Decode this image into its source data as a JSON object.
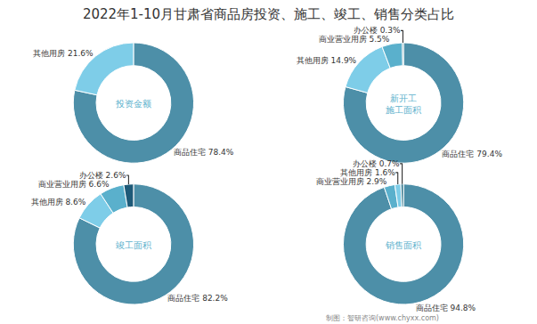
{
  "title": "2022年1-10月甘肃省商品房投资、施工、竣工、销售分类占比",
  "annotations": [
    "制图：智研咨询(www.chyxx.com)"
  ],
  "chart_data": [
    {
      "type": "pie",
      "title": "投资金额",
      "categories": [
        "商品住宅",
        "其他用房"
      ],
      "values": [
        78.4,
        21.6
      ],
      "value_labels": [
        "商品住宅 78.4%",
        "其他用房 21.6%"
      ],
      "colors": [
        "#4d8fa8",
        "#7ecde8"
      ]
    },
    {
      "type": "pie",
      "title": "新开工\n施工面积",
      "categories": [
        "商品住宅",
        "其他用房",
        "商业营业用房",
        "办公楼"
      ],
      "values": [
        79.4,
        14.9,
        5.5,
        0.3
      ],
      "value_labels": [
        "商品住宅 79.4%",
        "其他用房 14.9%",
        "商业营业用房 5.5%",
        "办公楼 0.3%"
      ],
      "colors": [
        "#4d8fa8",
        "#7ecde8",
        "#5ab0cc",
        "#3a7a90"
      ]
    },
    {
      "type": "pie",
      "title": "竣工面积",
      "categories": [
        "商品住宅",
        "其他用房",
        "商业营业用房",
        "办公楼"
      ],
      "values": [
        82.2,
        8.6,
        6.6,
        2.6
      ],
      "value_labels": [
        "商品住宅 82.2%",
        "其他用房 8.6%",
        "商业营业用房 6.6%",
        "办公楼 2.6%"
      ],
      "colors": [
        "#4d8fa8",
        "#7ecde8",
        "#5ab0cc",
        "#1e5a78"
      ]
    },
    {
      "type": "pie",
      "title": "销售面积",
      "categories": [
        "商品住宅",
        "商业营业用房",
        "其他用房",
        "办公楼"
      ],
      "values": [
        94.8,
        2.9,
        1.6,
        0.7
      ],
      "value_labels": [
        "商品住宅 94.8%",
        "商业营业用房 2.9%",
        "其他用房 1.6%",
        "办公楼 0.7%"
      ],
      "colors": [
        "#4d8fa8",
        "#5ab0cc",
        "#7ecde8",
        "#3a7a90"
      ]
    }
  ]
}
